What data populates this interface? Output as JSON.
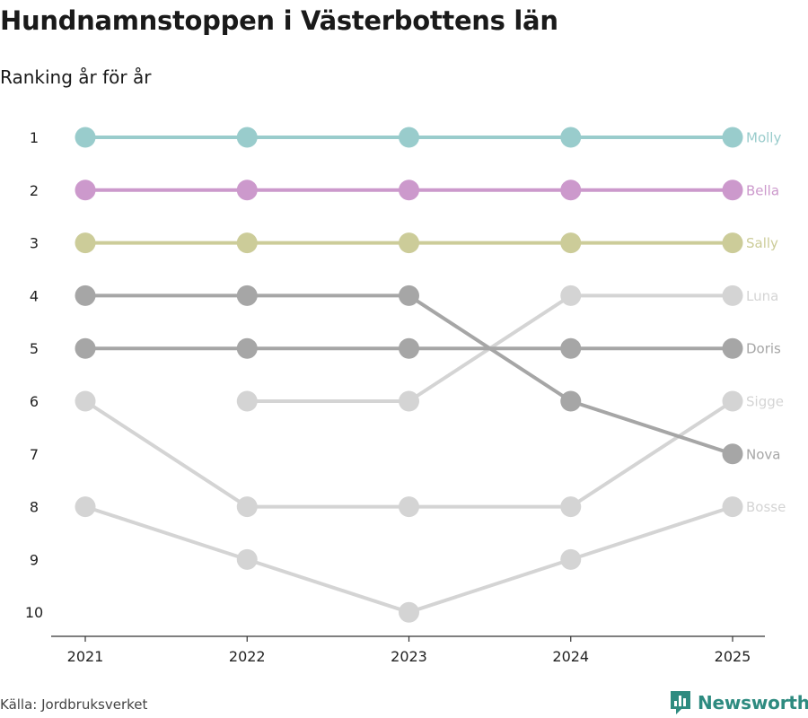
{
  "header": {
    "title": "Hundnamnstoppen i Västerbottens län",
    "subtitle": "Ranking år för år"
  },
  "footer": {
    "source": "Källa: Jordbruksverket",
    "brand": "Newsworthy",
    "brand_icon": "bar-chart-logo-icon",
    "brand_color": "#2e8b80"
  },
  "chart_data": {
    "type": "line",
    "title": "Hundnamnstoppen i Västerbottens län",
    "subtitle": "Ranking år för år",
    "x": [
      "2021",
      "2022",
      "2023",
      "2024",
      "2025"
    ],
    "y_ticks": [
      1,
      2,
      3,
      4,
      5,
      6,
      7,
      8,
      9,
      10
    ],
    "y_inverted": true,
    "ylim": [
      1,
      10
    ],
    "xlabel": "",
    "ylabel": "",
    "legend": "end-of-line labels on the right",
    "series": [
      {
        "name": "Bosse",
        "color": "#d4d4d4",
        "values": [
          8,
          9,
          10,
          9,
          8
        ]
      },
      {
        "name": "Sigge",
        "color": "#d4d4d4",
        "values": [
          6,
          8,
          8,
          8,
          6
        ]
      },
      {
        "name": "Luna",
        "color": "#d4d4d4",
        "values": [
          null,
          6,
          6,
          4,
          4
        ]
      },
      {
        "name": "Nova",
        "color": "#a6a6a6",
        "values": [
          4,
          4,
          4,
          6,
          7
        ]
      },
      {
        "name": "Doris",
        "color": "#a6a6a6",
        "values": [
          5,
          5,
          5,
          5,
          5
        ]
      },
      {
        "name": "Sally",
        "color": "#cccc99",
        "values": [
          3,
          3,
          3,
          3,
          3
        ]
      },
      {
        "name": "Bella",
        "color": "#cc99cc",
        "values": [
          2,
          2,
          2,
          2,
          2
        ]
      },
      {
        "name": "Molly",
        "color": "#99cccc",
        "values": [
          1,
          1,
          1,
          1,
          1
        ]
      }
    ]
  }
}
